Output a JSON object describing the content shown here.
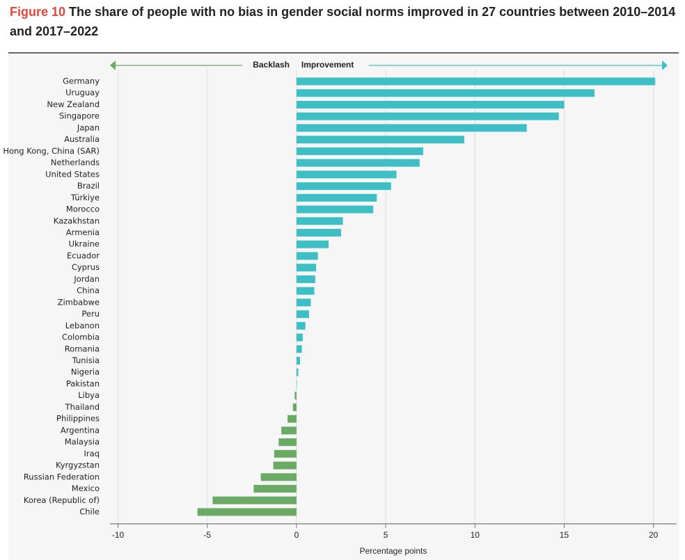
{
  "chart_data": {
    "type": "bar",
    "orientation": "horizontal",
    "figure_label": "Figure 10",
    "title": "The share of people with no bias in gender social norms improved in 27 countries between 2010–2014 and 2017–2022",
    "annotations": [
      "Backlash",
      "Improvement"
    ],
    "xlabel": "Percentage points",
    "categories": [
      "Germany",
      "Uruguay",
      "New Zealand",
      "Singapore",
      "Japan",
      "Australia",
      "Hong Kong, China (SAR)",
      "Netherlands",
      "United States",
      "Brazil",
      "Türkiye",
      "Morocco",
      "Kazakhstan",
      "Armenia",
      "Ukraine",
      "Ecuador",
      "Cyprus",
      "Jordan",
      "China",
      "Zimbabwe",
      "Peru",
      "Lebanon",
      "Colombia",
      "Romania",
      "Tunisia",
      "Nigeria",
      "Pakistan",
      "Libya",
      "Thailand",
      "Philippines",
      "Argentina",
      "Malaysia",
      "Iraq",
      "Kyrgyzstan",
      "Russian Federation",
      "Mexico",
      "Korea (Republic of)",
      "Chile"
    ],
    "values": [
      20.1,
      16.7,
      15.0,
      14.7,
      12.9,
      9.4,
      7.1,
      6.9,
      5.6,
      5.3,
      4.5,
      4.3,
      2.6,
      2.5,
      1.8,
      1.2,
      1.1,
      1.05,
      1.0,
      0.8,
      0.7,
      0.5,
      0.35,
      0.3,
      0.2,
      0.1,
      0.02,
      -0.1,
      -0.2,
      -0.5,
      -0.85,
      -1.0,
      -1.25,
      -1.3,
      -2.0,
      -2.4,
      -4.7,
      -5.55
    ],
    "positive_color": "#3dbfc5",
    "negative_color": "#6aaa64",
    "xlim": [
      -10.45,
      21.3
    ],
    "xticks": [
      -10,
      -5,
      0,
      5,
      10,
      15,
      20
    ],
    "grid": true
  }
}
